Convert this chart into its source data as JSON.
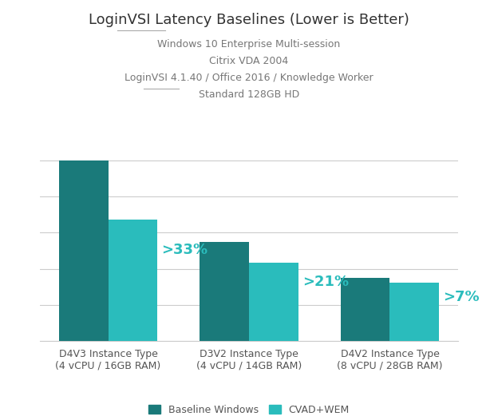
{
  "title": "LoginVSI Latency Baselines (Lower is Better)",
  "subtitle_lines": [
    "Windows 10 Enterprise Multi-session",
    "Citrix VDA 2004",
    "LoginVSI 4.1.40 / Office 2016 / Knowledge Worker",
    "Standard 128GB HD"
  ],
  "categories": [
    "D4V3 Instance Type\n(4 vCPU / 16GB RAM)",
    "D3V2 Instance Type\n(4 vCPU / 14GB RAM)",
    "D4V2 Instance Type\n(8 vCPU / 28GB RAM)"
  ],
  "baseline_values": [
    100,
    55,
    35
  ],
  "wem_values": [
    67,
    43.5,
    32.5
  ],
  "pct_labels": [
    ">33%",
    ">21%",
    ">7%"
  ],
  "color_baseline": "#1a7a7a",
  "color_wem": "#2abcbc",
  "legend_labels": [
    "Baseline Windows",
    "CVAD+WEM"
  ],
  "bar_width": 0.35,
  "ylim": [
    0,
    115
  ],
  "background_color": "#ffffff",
  "title_fontsize": 13,
  "subtitle_fontsize": 9,
  "axis_label_fontsize": 9,
  "legend_fontsize": 9,
  "pct_label_fontsize": 13
}
